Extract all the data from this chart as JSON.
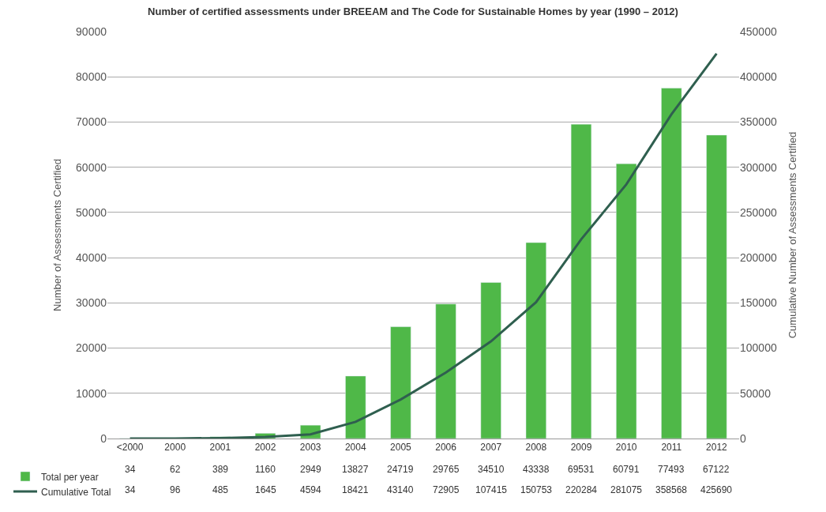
{
  "chart_data": {
    "type": "bar",
    "title": "Number of certified assessments under BREEAM and The Code for Sustainable Homes by year (1990 – 2012)",
    "ylabel": "Number of Assessments Certified",
    "y2label": "Cumulative Number of Assessments Certified",
    "categories": [
      "<2000",
      "2000",
      "2001",
      "2002",
      "2003",
      "2004",
      "2005",
      "2006",
      "2007",
      "2008",
      "2009",
      "2010",
      "2011",
      "2012"
    ],
    "series": [
      {
        "name": "Total per year",
        "color": "#4fb848",
        "values": [
          34,
          62,
          389,
          1160,
          2949,
          13827,
          24719,
          29765,
          34510,
          43338,
          69531,
          60791,
          77493,
          67122
        ]
      },
      {
        "name": "Cumulative Total",
        "type": "line",
        "axis": "y2",
        "color": "#2f5f4f",
        "marker": "none",
        "line_style": "solid",
        "values": [
          34,
          96,
          485,
          1645,
          4594,
          18421,
          43140,
          72905,
          107415,
          150753,
          220284,
          281075,
          358568,
          425690
        ]
      }
    ],
    "ylim": [
      0,
      90000
    ],
    "yticks": [
      0,
      10000,
      20000,
      30000,
      40000,
      50000,
      60000,
      70000,
      80000,
      90000
    ],
    "y2lim": [
      0,
      450000
    ],
    "y2ticks": [
      0,
      50000,
      100000,
      150000,
      200000,
      250000,
      300000,
      350000,
      400000,
      450000
    ],
    "grid": "y",
    "data_labels": true,
    "legend": "bottom left"
  }
}
